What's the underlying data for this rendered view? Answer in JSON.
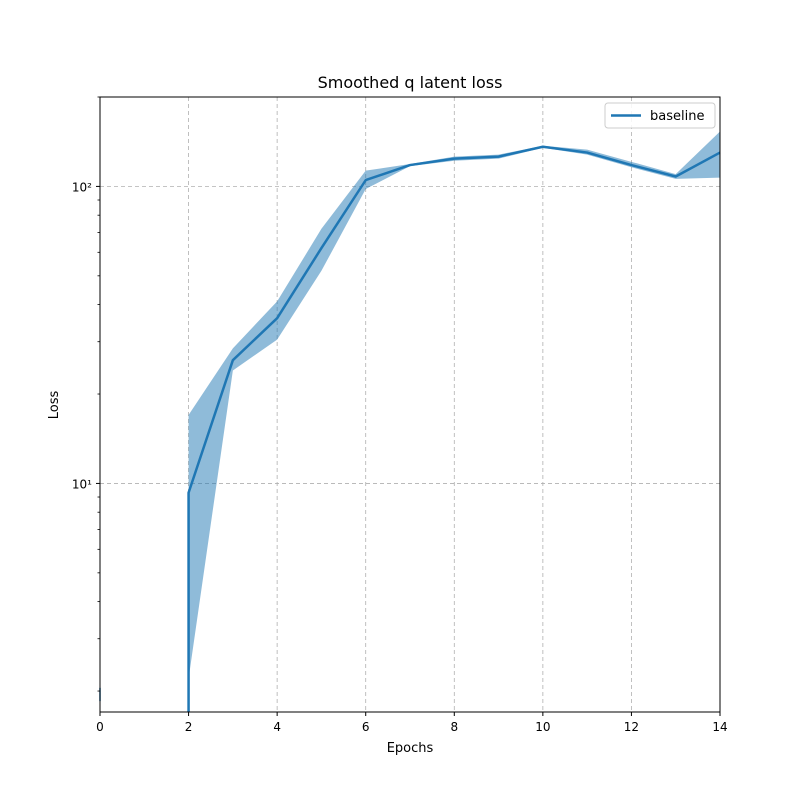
{
  "chart_data": {
    "type": "line",
    "title": "Smoothed q latent loss",
    "xlabel": "Epochs",
    "ylabel": "Loss",
    "yscale": "log",
    "xlim": [
      0,
      14
    ],
    "ylim": [
      1.7,
      200
    ],
    "grid": true,
    "legend_placement": "top-right",
    "x_ticks": [
      0,
      2,
      4,
      6,
      8,
      10,
      12,
      14
    ],
    "y_ticks": [
      {
        "value": 10,
        "label": "10¹"
      },
      {
        "value": 100,
        "label": "10²"
      }
    ],
    "series": [
      {
        "name": "baseline",
        "color": "#1f77b4",
        "x": [
          2,
          2,
          3,
          4,
          5,
          6,
          7,
          8,
          9,
          10,
          11,
          12,
          13,
          14
        ],
        "y": [
          1.7,
          9.3,
          26,
          36,
          62,
          105,
          118,
          124,
          126,
          136,
          130,
          118,
          108,
          130
        ],
        "band_lower": [
          1.7,
          2.2,
          24,
          30.5,
          52,
          98,
          117,
          122,
          124,
          135,
          128,
          116,
          106,
          107
        ],
        "band_upper": [
          1.7,
          17,
          28.5,
          41,
          72,
          113,
          119,
          126,
          128,
          137,
          133,
          121,
          110,
          153
        ]
      }
    ]
  }
}
